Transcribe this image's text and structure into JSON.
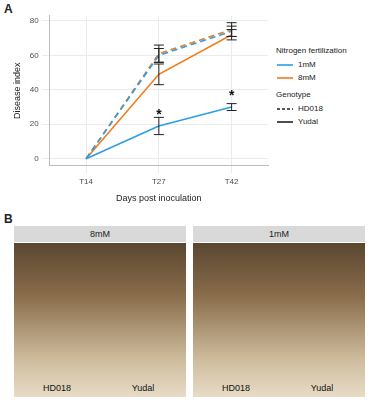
{
  "panel_labels": [
    "A",
    "B"
  ],
  "chart_data": {
    "type": "line",
    "x_label": "Days post inoculation",
    "y_label": "Disease index",
    "categories": [
      "T14",
      "T27",
      "T42"
    ],
    "ylim": [
      -4,
      83
    ],
    "yticks": [
      0,
      20,
      40,
      60,
      80
    ],
    "grid": true,
    "series": [
      {
        "genotype": "HD018",
        "nitrogen": "1mM",
        "color": "#2b9ee6",
        "line_style": "dashed",
        "values": [
          0,
          60,
          74
        ],
        "errors": [
          0,
          4,
          3
        ]
      },
      {
        "genotype": "HD018",
        "nitrogen": "8mM",
        "color": "#f07c1b",
        "line_style": "dashed",
        "values": [
          0,
          61,
          75
        ],
        "errors": [
          0,
          5,
          4
        ]
      },
      {
        "genotype": "Yudal",
        "nitrogen": "1mM",
        "color": "#2b9ee6",
        "line_style": "solid",
        "values": [
          0,
          19,
          30
        ],
        "errors": [
          0,
          5,
          2
        ]
      },
      {
        "genotype": "Yudal",
        "nitrogen": "8mM",
        "color": "#f07c1b",
        "line_style": "solid",
        "values": [
          0,
          49,
          72
        ],
        "errors": [
          0,
          6,
          3
        ]
      }
    ],
    "annotations": [
      {
        "text": "*",
        "x": "T27",
        "y": 27
      },
      {
        "text": "*",
        "x": "T42",
        "y": 38
      }
    ],
    "legend_groups": [
      {
        "title": "Nitrogen fertilization",
        "entries": [
          {
            "label": "1mM",
            "color": "#2b9ee6"
          },
          {
            "label": "8mM",
            "color": "#f07c1b"
          }
        ]
      },
      {
        "title": "Genotype",
        "entries": [
          {
            "label": "HD018",
            "line_style": "dashed"
          },
          {
            "label": "Yudal",
            "line_style": "solid"
          }
        ]
      }
    ]
  },
  "photo_panel": {
    "images": [
      {
        "header": "8mM",
        "labels": [
          "HD018",
          "Yudal"
        ]
      },
      {
        "header": "1mM",
        "labels": [
          "HD018",
          "Yudal"
        ]
      }
    ]
  }
}
